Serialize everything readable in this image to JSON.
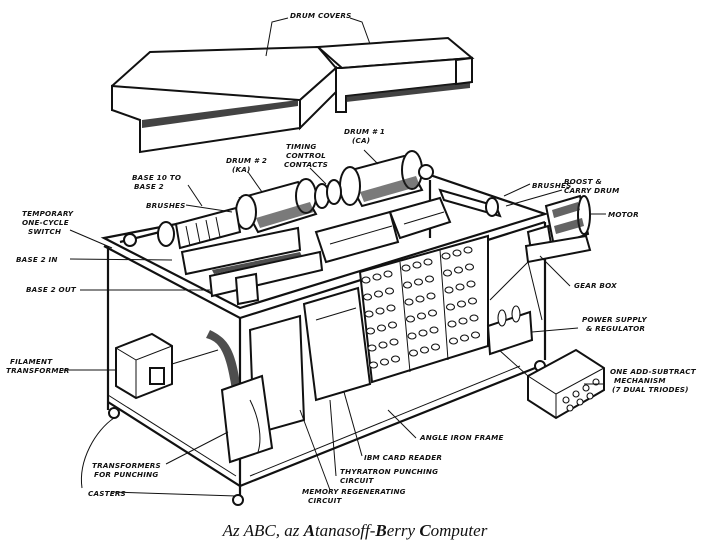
{
  "labels": {
    "drum_covers": "DRUM COVERS",
    "drum1": "DRUM # 1",
    "drum1_ca": "(CA)",
    "drum2": "DRUM # 2",
    "drum2_ka": "(KA)",
    "timing1": "TIMING",
    "timing2": "CONTROL",
    "timing3": "CONTACTS",
    "base10_1": "BASE 10 TO",
    "base10_2": "BASE 2",
    "brushes_left": "BRUSHES",
    "brushes_right": "BRUSHES",
    "boost1": "BOOST &",
    "boost2": "CARRY DRUM",
    "motor": "MOTOR",
    "temp1": "TEMPORARY",
    "temp2": "ONE-CYCLE",
    "temp3": "SWITCH",
    "base2_in": "BASE 2 IN",
    "base2_out": "BASE 2 OUT",
    "gear_box": "GEAR BOX",
    "power1": "POWER SUPPLY",
    "power2": "& REGULATOR",
    "filament1": "FILAMENT",
    "filament2": "TRANSFORMER",
    "addsub1": "ONE ADD-SUBTRACT",
    "addsub2": "MECHANISM",
    "addsub3": "(7 DUAL TRIODES)",
    "angle_iron": "ANGLE IRON FRAME",
    "ibm": "IBM CARD READER",
    "thyratron1": "THYRATRON PUNCHING",
    "thyratron2": "CIRCUIT",
    "transformers1": "TRANSFORMERS",
    "transformers2": "FOR PUNCHING",
    "memory1": "MEMORY REGENERATING",
    "memory2": "CIRCUIT",
    "casters": "CASTERS"
  },
  "caption": {
    "pre": "Az ABC, az ",
    "A": "A",
    "mid1": "tanasoff-",
    "B": "B",
    "mid2": "erry ",
    "C": "C",
    "end": "omputer"
  }
}
